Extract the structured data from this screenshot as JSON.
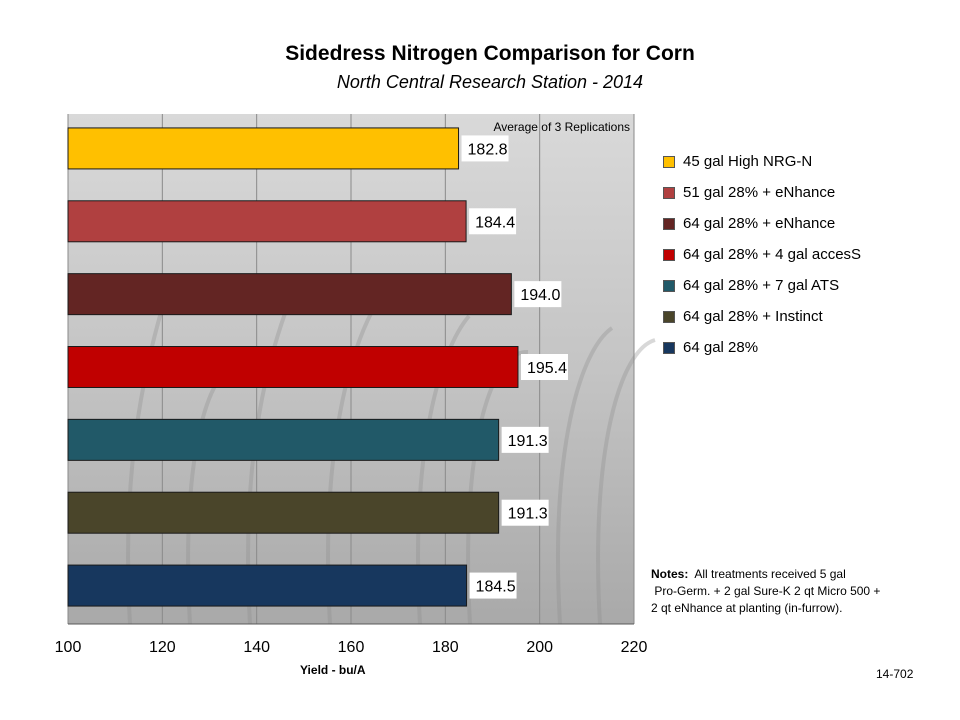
{
  "chart_data": {
    "type": "bar",
    "orientation": "horizontal",
    "title": "Sidedress Nitrogen Comparison for Corn",
    "subtitle": "North Central Research Station - 2014",
    "annotation": "Average of 3 Replications",
    "xlabel": "Yield - bu/A",
    "xlim": [
      100,
      220
    ],
    "xticks": [
      100,
      120,
      140,
      160,
      180,
      200,
      220
    ],
    "grid": true,
    "legend_position": "right",
    "series": [
      {
        "name": "45 gal High NRG-N",
        "value": 182.8,
        "label": "182.8",
        "color": "#FFC000"
      },
      {
        "name": "51 gal 28% + eNhance",
        "value": 184.4,
        "label": "184.4",
        "color": "#B04040"
      },
      {
        "name": "64 gal 28% + eNhance",
        "value": 194.0,
        "label": "194.0",
        "color": "#632523"
      },
      {
        "name": "64 gal 28% + 4 gal accesS",
        "value": 195.4,
        "label": "195.4",
        "color": "#C00000"
      },
      {
        "name": "64 gal 28% + 7 gal ATS",
        "value": 191.3,
        "label": "191.3",
        "color": "#215968"
      },
      {
        "name": "64 gal 28% + Instinct",
        "value": 191.3,
        "label": "191.3",
        "color": "#4A452A"
      },
      {
        "name": "64 gal 28%",
        "value": 184.5,
        "label": "184.5",
        "color": "#17375E"
      }
    ]
  },
  "notes": {
    "label": "Notes:",
    "line1": "All treatments received 5 gal",
    "line2": "Pro-Germ. + 2 gal Sure-K 2 qt Micro 500 +",
    "line3": "2 qt eNhance at planting (in-furrow)."
  },
  "report_code": "14-702"
}
